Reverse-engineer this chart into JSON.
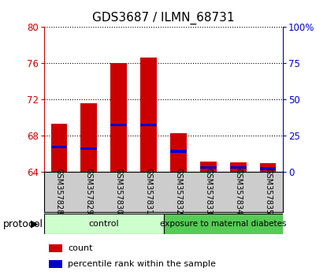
{
  "title": "GDS3687 / ILMN_68731",
  "samples": [
    "GSM357828",
    "GSM357829",
    "GSM357830",
    "GSM357831",
    "GSM357832",
    "GSM357833",
    "GSM357834",
    "GSM357835"
  ],
  "red_tops": [
    69.3,
    71.5,
    76.0,
    76.6,
    68.2,
    65.1,
    65.05,
    64.9
  ],
  "blue_pct": [
    17,
    16,
    32,
    32,
    14,
    3,
    3,
    2
  ],
  "ylim_left": [
    64,
    80
  ],
  "ylim_right": [
    0,
    100
  ],
  "yticks_left": [
    64,
    68,
    72,
    76,
    80
  ],
  "yticks_right": [
    0,
    25,
    50,
    75,
    100
  ],
  "ytick_labels_right": [
    "0",
    "25",
    "50",
    "75",
    "100%"
  ],
  "bar_bottom": 64,
  "red_color": "#cc0000",
  "blue_color": "#0000cc",
  "bar_width": 0.55,
  "control_color": "#ccffcc",
  "diabetes_color": "#55cc55",
  "control_label": "control",
  "diabetes_label": "exposure to maternal diabetes",
  "n_control": 4,
  "legend_labels": [
    "count",
    "percentile rank within the sample"
  ],
  "protocol_label": "protocol",
  "xlabel_color": "#cccccc",
  "title_fontsize": 11
}
